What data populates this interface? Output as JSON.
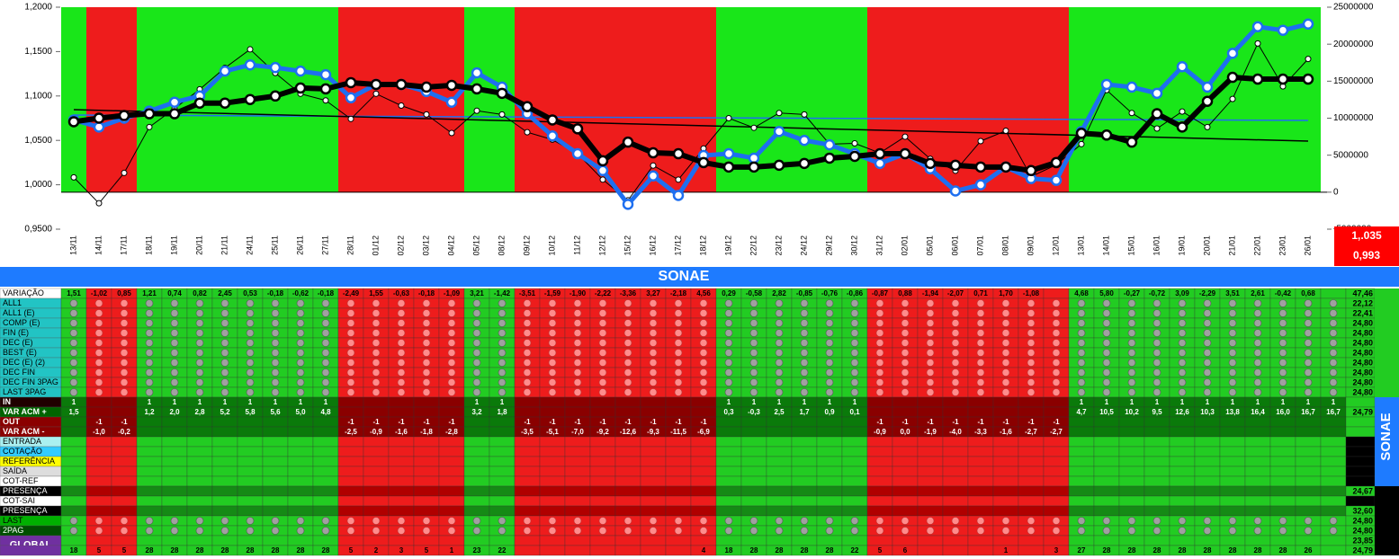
{
  "chart_data": {
    "type": "line",
    "categories": [
      "13/11",
      "14/11",
      "17/11",
      "18/11",
      "19/11",
      "20/11",
      "21/11",
      "24/11",
      "25/11",
      "26/11",
      "27/11",
      "28/11",
      "01/12",
      "02/12",
      "03/12",
      "04/12",
      "05/12",
      "08/12",
      "09/12",
      "10/12",
      "11/12",
      "12/12",
      "15/12",
      "16/12",
      "17/12",
      "18/12",
      "19/12",
      "22/12",
      "23/12",
      "24/12",
      "29/12",
      "30/12",
      "31/12",
      "02/01",
      "05/01",
      "06/01",
      "07/01",
      "08/01",
      "09/01",
      "12/01",
      "13/01",
      "14/01",
      "15/01",
      "16/01",
      "19/01",
      "20/01",
      "21/01",
      "22/01",
      "23/01",
      "26/01"
    ],
    "background_colors": [
      "#19e619",
      "#ee1c1c",
      "#ee1c1c",
      "#19e619",
      "#19e619",
      "#19e619",
      "#19e619",
      "#19e619",
      "#19e619",
      "#19e619",
      "#19e619",
      "#ee1c1c",
      "#ee1c1c",
      "#ee1c1c",
      "#ee1c1c",
      "#ee1c1c",
      "#19e619",
      "#19e619",
      "#ee1c1c",
      "#ee1c1c",
      "#ee1c1c",
      "#ee1c1c",
      "#ee1c1c",
      "#ee1c1c",
      "#ee1c1c",
      "#ee1c1c",
      "#19e619",
      "#19e619",
      "#19e619",
      "#19e619",
      "#19e619",
      "#19e619",
      "#ee1c1c",
      "#ee1c1c",
      "#ee1c1c",
      "#ee1c1c",
      "#ee1c1c",
      "#ee1c1c",
      "#ee1c1c",
      "#ee1c1c",
      "#19e619",
      "#19e619",
      "#19e619",
      "#19e619",
      "#19e619",
      "#19e619",
      "#19e619",
      "#19e619",
      "#19e619",
      "#19e619"
    ],
    "ylim": [
      0.95,
      1.2
    ],
    "yticks": [
      {
        "value": 0.95,
        "label": "0,9500"
      },
      {
        "value": 1.0,
        "label": "1,0000"
      },
      {
        "value": 1.05,
        "label": "1,0500"
      },
      {
        "value": 1.1,
        "label": "1,1000"
      },
      {
        "value": 1.15,
        "label": "1,1500"
      },
      {
        "value": 1.2,
        "label": "1,2000"
      }
    ],
    "y2lim": [
      -5000000,
      25000000
    ],
    "y2ticks": [
      -5000000,
      0,
      5000000,
      10000000,
      15000000,
      20000000,
      25000000
    ],
    "series": [
      {
        "color": "#1e6ff0",
        "values": [
          1.073,
          1.065,
          1.075,
          1.083,
          1.093,
          1.1,
          1.128,
          1.135,
          1.132,
          1.128,
          1.124,
          1.098,
          1.113,
          1.113,
          1.105,
          1.093,
          1.126,
          1.11,
          1.08,
          1.055,
          1.035,
          1.016,
          0.978,
          1.01,
          0.988,
          1.033,
          1.035,
          1.03,
          1.06,
          1.05,
          1.045,
          1.035,
          1.024,
          1.035,
          1.018,
          0.993,
          1.0,
          1.02,
          1.007,
          1.005,
          1.06,
          1.113,
          1.11,
          1.103,
          1.133,
          1.11,
          1.148,
          1.178,
          1.174,
          1.181
        ]
      },
      {
        "color": "#000000",
        "values": [
          1.071,
          1.075,
          1.078,
          1.08,
          1.08,
          1.092,
          1.092,
          1.096,
          1.1,
          1.109,
          1.108,
          1.115,
          1.113,
          1.113,
          1.11,
          1.112,
          1.108,
          1.103,
          1.088,
          1.073,
          1.063,
          1.027,
          1.048,
          1.036,
          1.035,
          1.025,
          1.02,
          1.02,
          1.022,
          1.024,
          1.03,
          1.032,
          1.035,
          1.035,
          1.024,
          1.022,
          1.02,
          1.02,
          1.016,
          1.025,
          1.058,
          1.056,
          1.048,
          1.08,
          1.065,
          1.094,
          1.121,
          1.119,
          1.119,
          1.119
        ]
      },
      {
        "color": "#000000",
        "axis": "y2",
        "values": [
          2000000,
          -1500000,
          2600000,
          8800000,
          11300000,
          13900000,
          16800000,
          19300000,
          16100000,
          13300000,
          12400000,
          9900000,
          13300000,
          11700000,
          10500000,
          8000000,
          11000000,
          10500000,
          8100000,
          7100000,
          5200000,
          1700000,
          -1100000,
          3600000,
          1700000,
          5900000,
          10000000,
          8700000,
          10700000,
          10500000,
          6500000,
          6600000,
          5300000,
          7500000,
          4500000,
          2900000,
          6900000,
          8300000,
          2100000,
          3700000,
          6500000,
          13800000,
          10700000,
          8600000,
          10900000,
          8800000,
          12600000,
          20100000,
          14300000,
          18000000
        ]
      }
    ],
    "trendlines": [
      {
        "color": "#1e6ff0",
        "values": [
          1.0785,
          1.0725
        ]
      },
      {
        "color": "#000000",
        "values": [
          1.0846,
          1.0492
        ]
      }
    ]
  },
  "side_values": [
    "1,.035",
    "0,993"
  ],
  "table": {
    "title": "SONAE",
    "side_title": "SONAE",
    "rows": [
      {
        "label": "VARIAÇÃO",
        "total": "47,46",
        "cells": [
          "1,51",
          "-1,02",
          "0,85",
          "1,21",
          "0,74",
          "0,82",
          "2,45",
          "0,53",
          "-0,18",
          "-0,62",
          "-0,18",
          "-2,49",
          "1,55",
          "-0,63",
          "-0,18",
          "-1,09",
          "3,21",
          "-1,42",
          "-3,51",
          "-1,59",
          "-1,90",
          "-2,22",
          "-3,36",
          "3,27",
          "-2,18",
          "4,56",
          "0,29",
          "-0,58",
          "2,82",
          "-0,85",
          "-0,76",
          "-0,86",
          "-0,87",
          "0,88",
          "-1,94",
          "-2,07",
          "0,71",
          "1,70",
          "-1,08",
          null,
          "4,68",
          "5,80",
          "-0,27",
          "-0,72",
          "3,09",
          "-2,29",
          "3,51",
          "2,61",
          "-0,42",
          "0,68",
          null
        ]
      },
      {
        "label": "ALL1",
        "total": "22,12"
      },
      {
        "label": "ALL1 (E)",
        "total": "22,41"
      },
      {
        "label": "COMP (E)",
        "total": "24,80"
      },
      {
        "label": "FIN (E)",
        "total": "24,80"
      },
      {
        "label": "DEC (E)",
        "total": "24,80"
      },
      {
        "label": "BEST (E)",
        "total": "24,80"
      },
      {
        "label": "DEC (E) (2)",
        "total": "24,80"
      },
      {
        "label": "DEC FIN",
        "total": "24,80"
      },
      {
        "label": "DEC FIN 3PAG",
        "total": "24,80"
      },
      {
        "label": "LAST 3PAG",
        "total": "24,80"
      },
      {
        "label": "IN",
        "cells": [
          "1",
          null,
          null,
          "1",
          "1",
          "1",
          "1",
          "1",
          "1",
          "1",
          "1",
          null,
          null,
          null,
          null,
          null,
          "1",
          "1",
          null,
          null,
          null,
          null,
          null,
          null,
          null,
          null,
          "1",
          "1",
          "1",
          "1",
          "1",
          "1",
          null,
          null,
          null,
          null,
          null,
          null,
          null,
          null,
          "1",
          "1",
          "1",
          "1",
          "1",
          "1",
          "1",
          "1",
          "1",
          "1",
          "1"
        ]
      },
      {
        "label": "VAR ACM +",
        "total": "24,79",
        "cells": [
          "1,5",
          null,
          null,
          "1,2",
          "2,0",
          "2,8",
          "5,2",
          "5,8",
          "5,6",
          "5,0",
          "4,8",
          null,
          null,
          null,
          null,
          null,
          "3,2",
          "1,8",
          null,
          null,
          null,
          null,
          null,
          null,
          null,
          null,
          "0,3",
          "-0,3",
          "2,5",
          "1,7",
          "0,9",
          "0,1",
          null,
          null,
          null,
          null,
          null,
          null,
          null,
          null,
          "4,7",
          "10,5",
          "10,2",
          "9,5",
          "12,6",
          "10,3",
          "13,8",
          "16,4",
          "16,0",
          "16,7",
          "16,7"
        ]
      },
      {
        "label": "OUT",
        "cells": [
          null,
          "-1",
          "-1",
          null,
          null,
          null,
          null,
          null,
          null,
          null,
          null,
          "-1",
          "-1",
          "-1",
          "-1",
          "-1",
          null,
          null,
          "-1",
          "-1",
          "-1",
          "-1",
          "-1",
          "-1",
          "-1",
          "-1",
          null,
          null,
          null,
          null,
          null,
          null,
          "-1",
          "-1",
          "-1",
          "-1",
          "-1",
          "-1",
          "-1",
          "-1",
          null,
          null,
          null,
          null,
          null,
          null,
          null,
          null,
          null,
          null,
          null
        ]
      },
      {
        "label": "VAR ACM -",
        "cells": [
          null,
          "-1,0",
          "-0,2",
          null,
          null,
          null,
          null,
          null,
          null,
          null,
          null,
          "-2,5",
          "-0,9",
          "-1,6",
          "-1,8",
          "-2,8",
          null,
          null,
          "-3,5",
          "-5,1",
          "-7,0",
          "-9,2",
          "-12,6",
          "-9,3",
          "-11,5",
          "-6,9",
          null,
          null,
          null,
          null,
          null,
          null,
          "-0,9",
          "0,0",
          "-1,9",
          "-4,0",
          "-3,3",
          "-1,6",
          "-2,7",
          "-2,7",
          null,
          null,
          null,
          null,
          null,
          null,
          null,
          null,
          null,
          null,
          null
        ]
      },
      {
        "label": "ENTRADA"
      },
      {
        "label": "COTAÇÃO"
      },
      {
        "label": "REFERÊNCIA"
      },
      {
        "label": "SAÍDA"
      },
      {
        "label": "COT-REF"
      },
      {
        "label": "PRESENÇA",
        "total": "24,67"
      },
      {
        "label": "COT-SAI"
      },
      {
        "label": "PRESENÇA",
        "total": "32,60"
      },
      {
        "label": "LAST",
        "total": "24,80"
      },
      {
        "label": "2PAG",
        "total": "24,80"
      },
      {
        "label": "GLOBAL",
        "total": "23,85"
      },
      {
        "total": "24,79",
        "cells": [
          "18",
          "5",
          "5",
          "28",
          "28",
          "28",
          "28",
          "28",
          "28",
          "28",
          "28",
          "5",
          "2",
          "3",
          "5",
          "1",
          "23",
          "22",
          null,
          null,
          null,
          null,
          null,
          null,
          null,
          "4",
          "18",
          "28",
          "28",
          "28",
          "28",
          "22",
          "5",
          "6",
          null,
          null,
          null,
          "1",
          null,
          "3",
          "27",
          "28",
          "28",
          "28",
          "28",
          "28",
          "28",
          "28",
          "28",
          "26",
          null
        ]
      }
    ]
  }
}
